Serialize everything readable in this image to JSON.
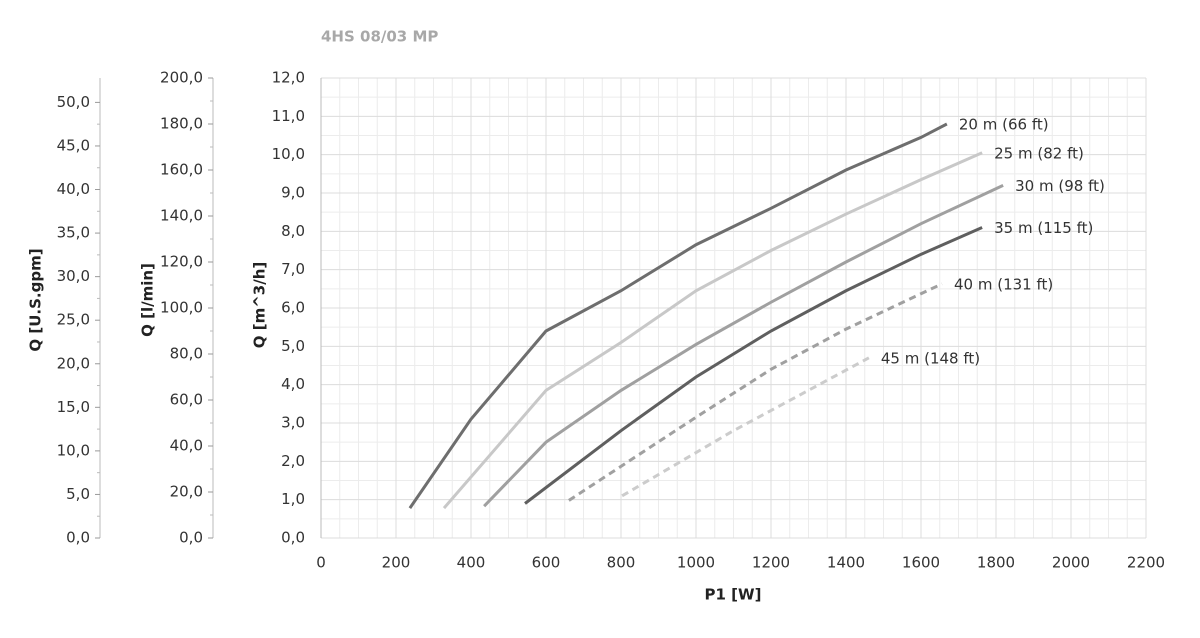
{
  "chart_data": {
    "type": "line",
    "title": "4HS 08/03 MP",
    "x_label": "P1 [W]",
    "y_label": "Q [m^3/h]",
    "y2_label": "Q [l/min]",
    "y3_label": "Q [U.S.gpm]",
    "xlim": [
      0,
      2200
    ],
    "xticks": [
      0,
      200,
      400,
      600,
      800,
      1000,
      1200,
      1400,
      1600,
      1800,
      2000,
      2200
    ],
    "ylim": [
      0,
      12
    ],
    "yticks": [
      {
        "value": 0,
        "label": "0,0"
      },
      {
        "value": 1,
        "label": "1,0"
      },
      {
        "value": 2,
        "label": "2,0"
      },
      {
        "value": 3,
        "label": "3,0"
      },
      {
        "value": 4,
        "label": "4,0"
      },
      {
        "value": 5,
        "label": "5,0"
      },
      {
        "value": 6,
        "label": "6,0"
      },
      {
        "value": 7,
        "label": "7,0"
      },
      {
        "value": 8,
        "label": "8,0"
      },
      {
        "value": 9,
        "label": "9,0"
      },
      {
        "value": 10,
        "label": "10,0"
      },
      {
        "value": 11,
        "label": "11,0"
      },
      {
        "value": 12,
        "label": "12,0"
      }
    ],
    "y2lim": [
      0,
      200
    ],
    "y2ticks": [
      {
        "value": 0,
        "label": "0,0"
      },
      {
        "value": 20,
        "label": "20,0"
      },
      {
        "value": 40,
        "label": "40,0"
      },
      {
        "value": 60,
        "label": "60,0"
      },
      {
        "value": 80,
        "label": "80,0"
      },
      {
        "value": 100,
        "label": "100,0"
      },
      {
        "value": 120,
        "label": "120,0"
      },
      {
        "value": 140,
        "label": "140,0"
      },
      {
        "value": 160,
        "label": "160,0"
      },
      {
        "value": 180,
        "label": "180,0"
      },
      {
        "value": 200,
        "label": "200,0"
      }
    ],
    "y3lim": [
      0,
      52.8
    ],
    "y3ticks": [
      {
        "value": 0,
        "label": "0,0"
      },
      {
        "value": 5,
        "label": "5,0"
      },
      {
        "value": 10,
        "label": "10,0"
      },
      {
        "value": 15,
        "label": "15,0"
      },
      {
        "value": 20,
        "label": "20,0"
      },
      {
        "value": 25,
        "label": "25,0"
      },
      {
        "value": 30,
        "label": "30,0"
      },
      {
        "value": 35,
        "label": "35,0"
      },
      {
        "value": 40,
        "label": "40,0"
      },
      {
        "value": 45,
        "label": "45,0"
      },
      {
        "value": 50,
        "label": "50,0"
      }
    ],
    "grid": true,
    "series": [
      {
        "name": "20 m (66 ft)",
        "color": "#6e6e6e",
        "dashed": false,
        "x": [
          237,
          400,
          600,
          800,
          1000,
          1200,
          1400,
          1600,
          1669
        ],
        "values": [
          0.78,
          3.1,
          5.4,
          6.45,
          7.65,
          8.6,
          9.6,
          10.45,
          10.8
        ]
      },
      {
        "name": "25 m (82 ft)",
        "color": "#c8c8c8",
        "dashed": false,
        "x": [
          328,
          600,
          800,
          1000,
          1200,
          1400,
          1600,
          1763
        ],
        "values": [
          0.78,
          3.85,
          5.1,
          6.45,
          7.5,
          8.45,
          9.35,
          10.05
        ]
      },
      {
        "name": "30 m (98 ft)",
        "color": "#a0a0a0",
        "dashed": false,
        "x": [
          435,
          600,
          800,
          1000,
          1200,
          1400,
          1600,
          1819
        ],
        "values": [
          0.83,
          2.5,
          3.85,
          5.05,
          6.15,
          7.2,
          8.2,
          9.2
        ]
      },
      {
        "name": "35 m (115 ft)",
        "color": "#5f5f5f",
        "dashed": false,
        "x": [
          544,
          800,
          1000,
          1200,
          1400,
          1600,
          1763
        ],
        "values": [
          0.9,
          2.8,
          4.2,
          5.4,
          6.45,
          7.4,
          8.1
        ]
      },
      {
        "name": "40 m (131 ft)",
        "color": "#a0a0a0",
        "dashed": true,
        "x": [
          661,
          1000,
          1200,
          1400,
          1656
        ],
        "values": [
          0.98,
          3.15,
          4.4,
          5.45,
          6.63
        ]
      },
      {
        "name": "45 m (148 ft)",
        "color": "#cccccc",
        "dashed": true,
        "x": [
          803,
          1100,
          1461
        ],
        "values": [
          1.1,
          2.8,
          4.7
        ]
      }
    ]
  }
}
